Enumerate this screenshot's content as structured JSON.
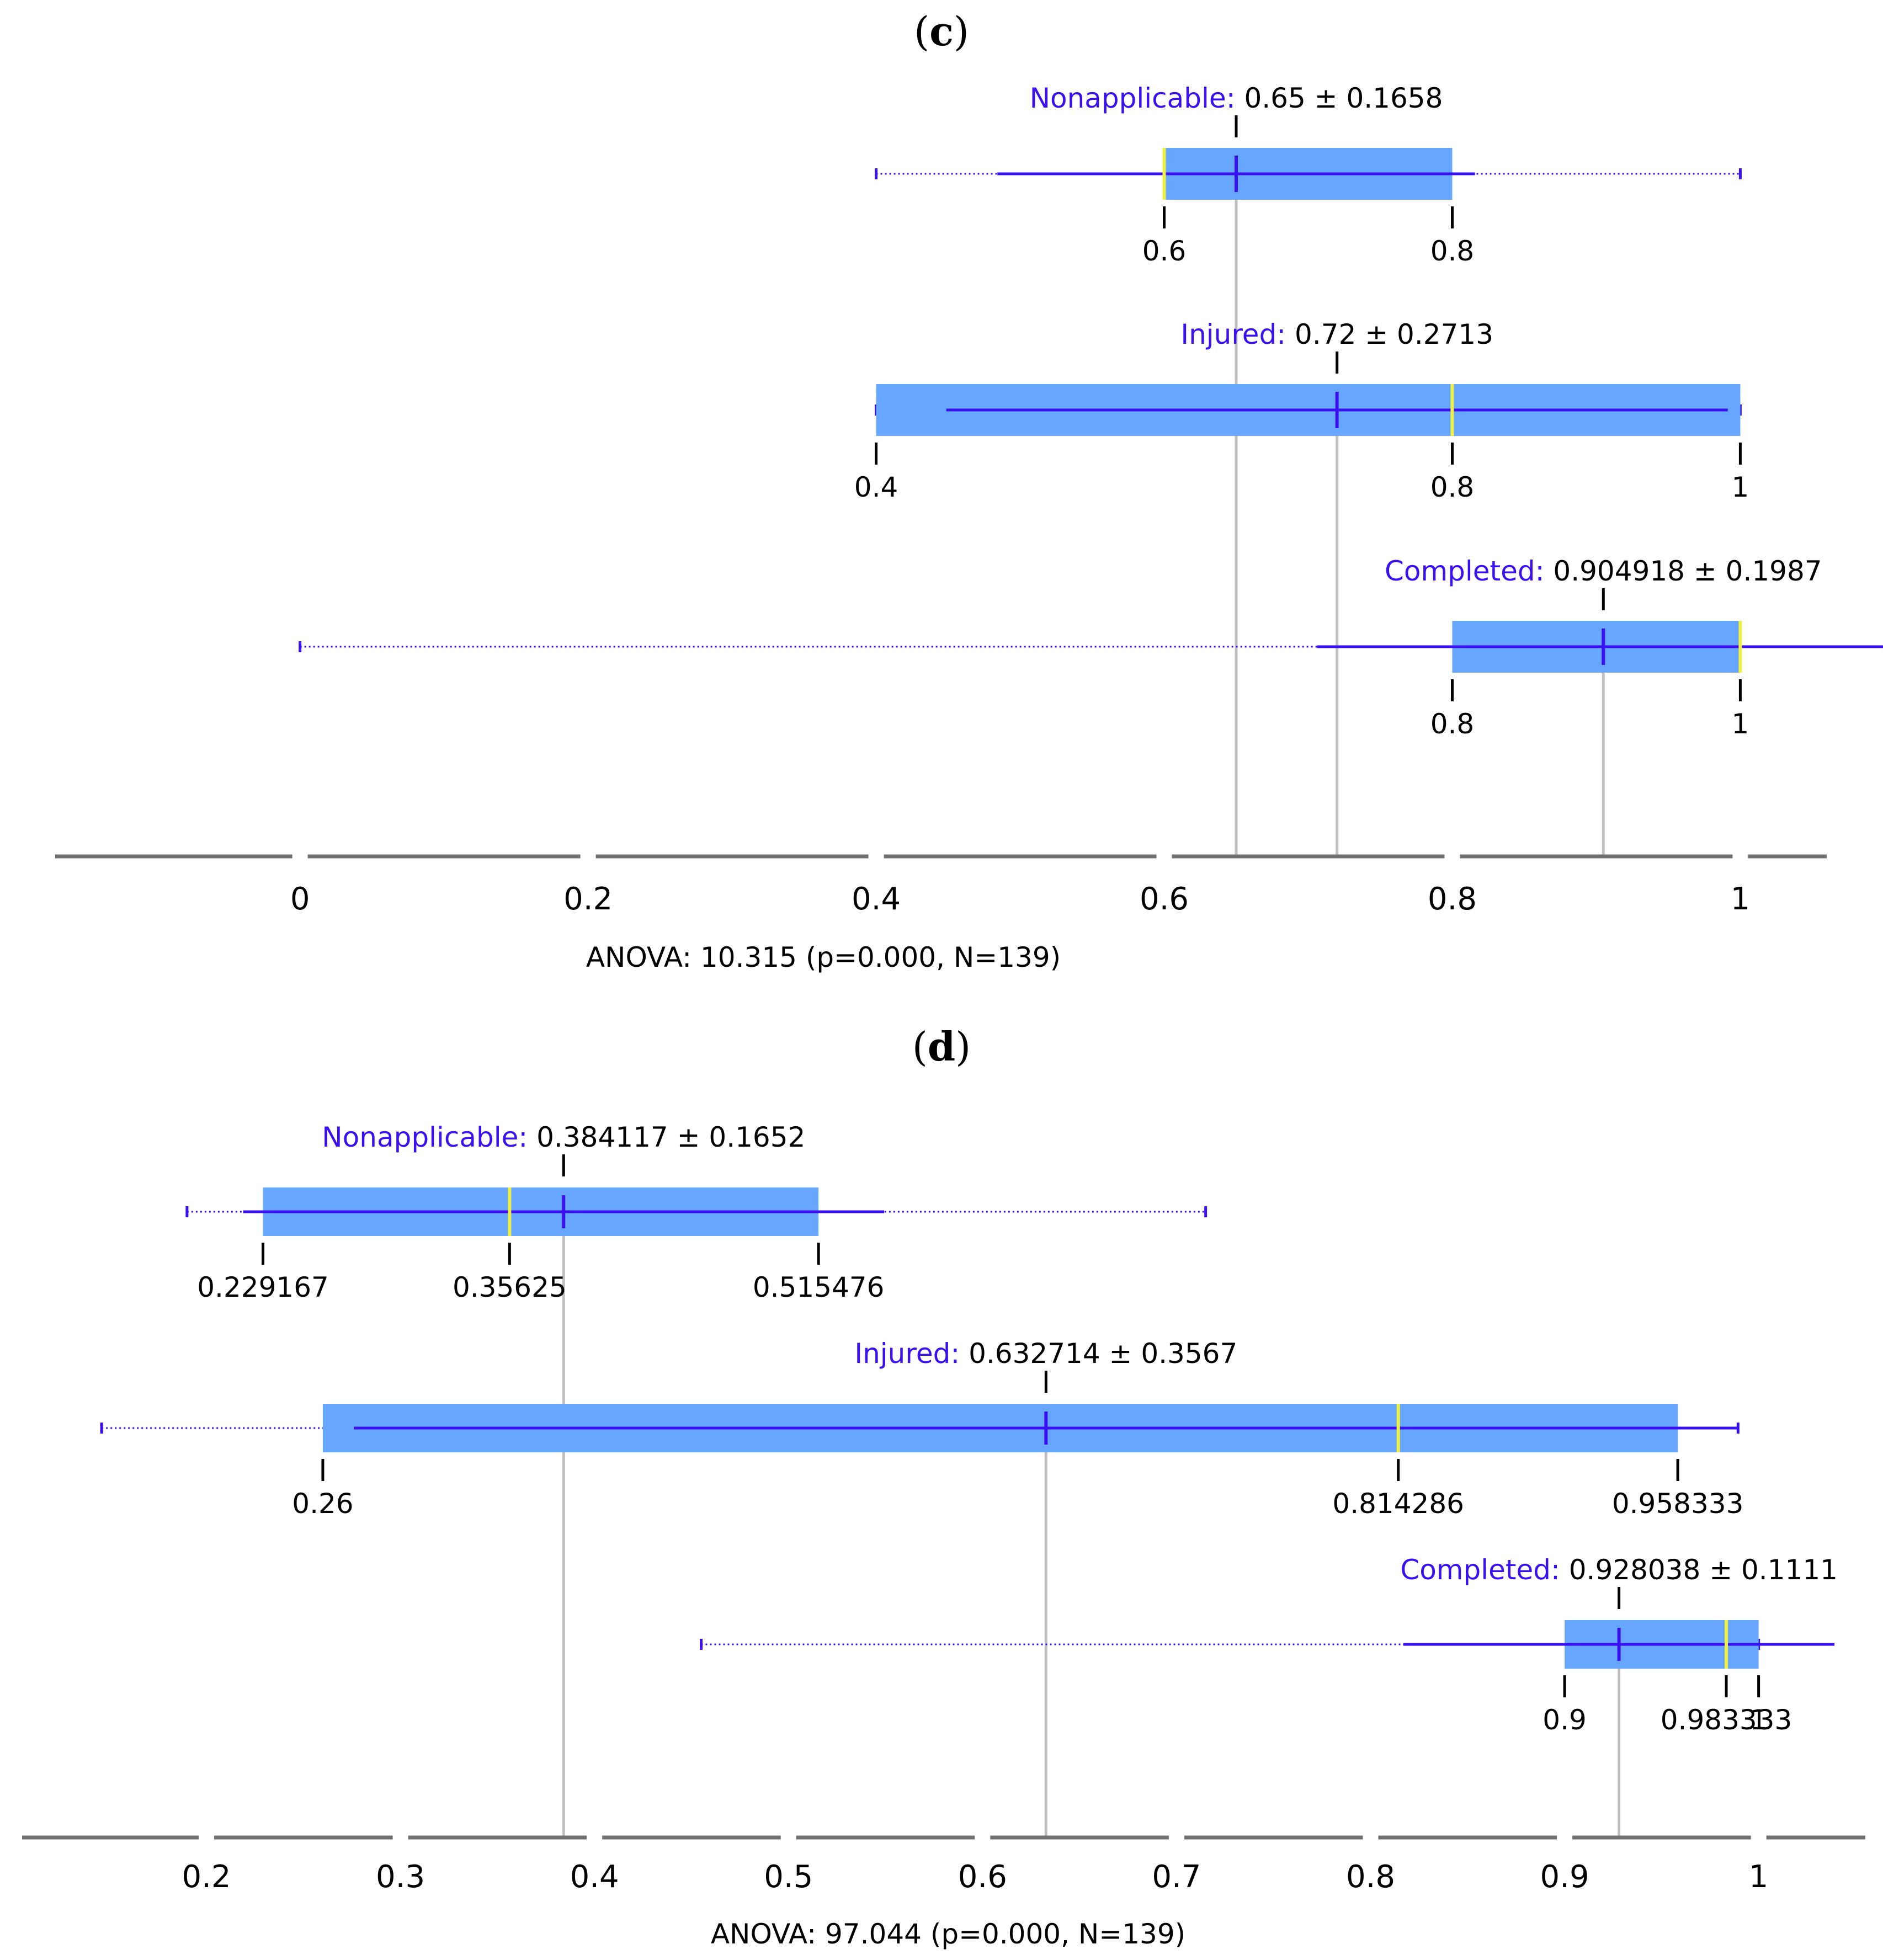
{
  "colors": {
    "box": "#66a6ff",
    "whisker": "#3a10f0",
    "median": "#f0f040",
    "mean_ref": "#c0c0c0",
    "axis": "#707070",
    "label_class": "#3a10f0"
  },
  "chart_data": [
    {
      "type": "box",
      "panel": "c",
      "xlim": [
        -0.17,
        1.06
      ],
      "axis_ticks": [
        0,
        0.2,
        0.4,
        0.6,
        0.8,
        1
      ],
      "tick_labels": [
        "0",
        "0.2",
        "0.4",
        "0.6",
        "0.8",
        "1"
      ],
      "anova": "ANOVA: 10.315 (p=0.000, N=139)",
      "groups": [
        {
          "name": "Nonapplicable:",
          "stat": "0.65 ± 0.1658",
          "mean": 0.65,
          "median": 0.6,
          "q1": 0.6,
          "q3": 0.8,
          "sd_low": 0.4842,
          "sd_high": 0.8158,
          "min": 0.4,
          "max": 1.0,
          "quantile_marks": [
            0.6,
            0.8
          ],
          "quantile_labels": [
            "0.6",
            "0.8"
          ]
        },
        {
          "name": "Injured:",
          "stat": "0.72 ± 0.2713",
          "mean": 0.72,
          "median": 0.8,
          "q1": 0.4,
          "q3": 1.0,
          "sd_low": 0.4487,
          "sd_high": 0.9913,
          "min": 0.4,
          "max": 1.0,
          "quantile_marks": [
            0.4,
            0.8,
            1.0
          ],
          "quantile_labels": [
            "0.4",
            "0.8",
            "1"
          ]
        },
        {
          "name": "Completed:",
          "stat": "0.904918 ± 0.1987",
          "mean": 0.904918,
          "median": 1.0,
          "q1": 0.8,
          "q3": 1.0,
          "sd_low": 0.7062,
          "sd_high": 1.1036,
          "min": 0.0,
          "max": 1.0,
          "quantile_marks": [
            0.8,
            1.0
          ],
          "quantile_labels": [
            "0.8",
            "1"
          ]
        }
      ]
    },
    {
      "type": "box",
      "panel": "d",
      "xlim": [
        0.105,
        1.055
      ],
      "axis_ticks": [
        0.2,
        0.3,
        0.4,
        0.5,
        0.6,
        0.7,
        0.8,
        0.9,
        1
      ],
      "tick_labels": [
        "0.2",
        "0.3",
        "0.4",
        "0.5",
        "0.6",
        "0.7",
        "0.8",
        "0.9",
        "1"
      ],
      "anova": "ANOVA: 97.044 (p=0.000, N=139)",
      "groups": [
        {
          "name": "Nonapplicable:",
          "stat": "0.384117 ± 0.1652",
          "mean": 0.384117,
          "median": 0.35625,
          "q1": 0.229167,
          "q3": 0.515476,
          "sd_low": 0.2189,
          "sd_high": 0.5493,
          "min": 0.19,
          "max": 0.715,
          "quantile_marks": [
            0.229167,
            0.35625,
            0.515476
          ],
          "quantile_labels": [
            "0.229167",
            "0.35625",
            "0.515476"
          ]
        },
        {
          "name": "Injured:",
          "stat": "0.632714 ± 0.3567",
          "mean": 0.632714,
          "median": 0.814286,
          "q1": 0.26,
          "q3": 0.958333,
          "sd_low": 0.276,
          "sd_high": 0.9894,
          "min": 0.146,
          "max": 0.9894,
          "quantile_marks": [
            0.26,
            0.814286,
            0.958333
          ],
          "quantile_labels": [
            "0.26",
            "0.814286",
            "0.958333"
          ]
        },
        {
          "name": "Completed:",
          "stat": "0.928038 ± 0.1111",
          "mean": 0.928038,
          "median": 0.983333,
          "q1": 0.9,
          "q3": 1.0,
          "sd_low": 0.8169,
          "sd_high": 1.0391,
          "min": 0.455,
          "max": 1.0,
          "quantile_marks": [
            0.9,
            0.983333,
            1.0
          ],
          "quantile_labels": [
            "0.9",
            "0.983333",
            "1"
          ]
        }
      ]
    }
  ]
}
